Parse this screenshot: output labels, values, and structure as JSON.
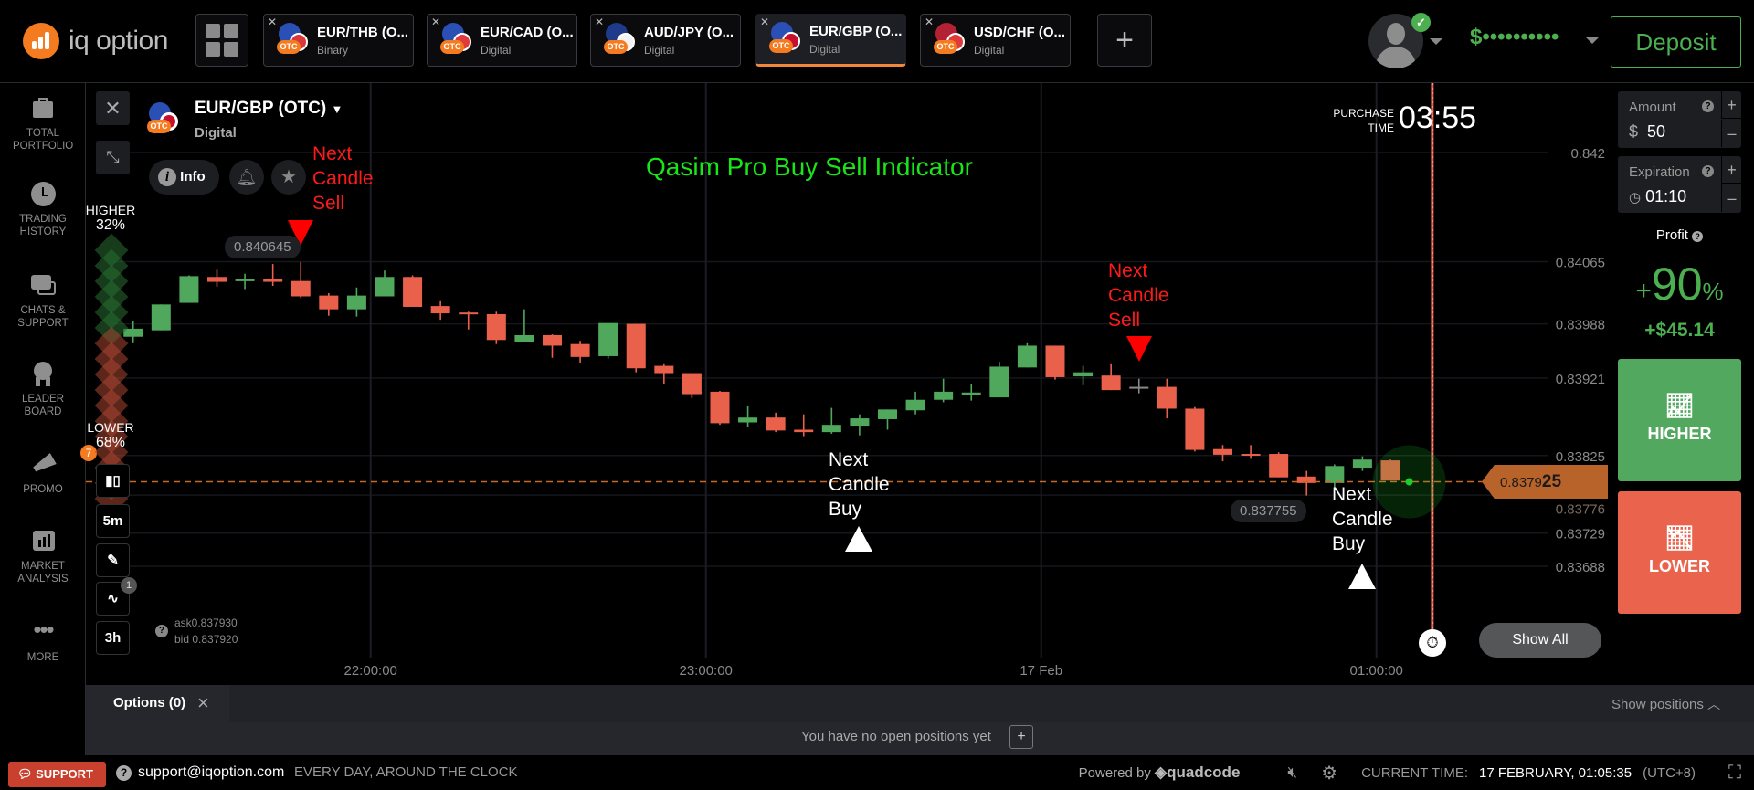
{
  "header": {
    "logo_text": "iq option",
    "tabs": [
      {
        "label": "EUR/THB (O...",
        "type": "Binary",
        "active": false,
        "flag_colors": [
          "#2a4fb5",
          "#d9393a"
        ]
      },
      {
        "label": "EUR/CAD (O...",
        "type": "Digital",
        "active": false,
        "flag_colors": [
          "#2a4fb5",
          "#e03b3b"
        ]
      },
      {
        "label": "AUD/JPY (O...",
        "type": "Digital",
        "active": false,
        "flag_colors": [
          "#1f3a8a",
          "#f2f2f2"
        ]
      },
      {
        "label": "EUR/GBP (O...",
        "type": "Digital",
        "active": true,
        "flag_colors": [
          "#2a4fb5",
          "#c8102e"
        ]
      },
      {
        "label": "USD/CHF (O...",
        "type": "Digital",
        "active": false,
        "flag_colors": [
          "#b22234",
          "#e03b3b"
        ]
      }
    ],
    "otc_badge": "OTC",
    "add_tab": "+",
    "balance": "$••••••••••",
    "deposit": "Deposit"
  },
  "sidebar": {
    "items": [
      {
        "label": "TOTAL PORTFOLIO",
        "icon": "briefcase-icon"
      },
      {
        "label": "TRADING HISTORY",
        "icon": "clock-icon"
      },
      {
        "label": "CHATS & SUPPORT",
        "icon": "chat-icon"
      },
      {
        "label": "LEADER BOARD",
        "icon": "medal-icon"
      },
      {
        "label": "PROMO",
        "icon": "megaphone-icon",
        "badge": "7"
      },
      {
        "label": "MARKET ANALYSIS",
        "icon": "analysis-icon"
      },
      {
        "label": "MORE",
        "icon": "more-icon"
      }
    ]
  },
  "asset": {
    "title": "EUR/GBP (OTC)",
    "type": "Digital",
    "info": "Info"
  },
  "sentiment": {
    "higher_label": "HIGHER",
    "higher_pct": "32%",
    "lower_label": "LOWER",
    "lower_pct": "68%",
    "higher_fraction": 0.32
  },
  "tools": {
    "timeframe": "5m",
    "indicator_count": "1",
    "range": "3h"
  },
  "quote": {
    "ask": "ask0.837930",
    "bid": "bid 0.837920"
  },
  "purchase": {
    "label_line1": "PURCHASE",
    "label_line2": "TIME",
    "time": "03:55"
  },
  "indicator_title": "Qasim Pro Buy Sell Indicator",
  "annotations": {
    "sell1": [
      "Next",
      "Candle",
      "Sell"
    ],
    "sell2": [
      "Next",
      "Candle",
      "Sell"
    ],
    "buy1": [
      "Next",
      "Candle",
      "Buy"
    ],
    "buy2": [
      "Next",
      "Candle",
      "Buy"
    ]
  },
  "chart_data": {
    "type": "candlestick",
    "interval": "5m",
    "y_ticks": [
      0.842,
      0.84065,
      0.83988,
      0.83921,
      0.83825,
      0.83776,
      0.83729,
      0.83688
    ],
    "y_tick_labels": [
      "0.842",
      "0.84065",
      "0.83988",
      "0.83921",
      "0.83825",
      "0.83776",
      "0.83729",
      "0.83688"
    ],
    "x_ticks": [
      {
        "time": "22:00",
        "label": "22:00:00"
      },
      {
        "time": "23:00",
        "label": "23:00:00"
      },
      {
        "time": "00:00",
        "label": "17 Feb"
      },
      {
        "time": "01:00",
        "label": "01:00:00"
      }
    ],
    "candles": [
      [
        "21:15",
        0.83972,
        0.83992,
        0.83964,
        0.83982
      ],
      [
        "21:20",
        0.8398,
        0.84012,
        0.8398,
        0.84012
      ],
      [
        "21:25",
        0.84014,
        0.84048,
        0.84014,
        0.84047
      ],
      [
        "21:30",
        0.84046,
        0.84055,
        0.84034,
        0.8404
      ],
      [
        "21:35",
        0.84042,
        0.8405,
        0.84031,
        0.84043
      ],
      [
        "21:40",
        0.84043,
        0.84062,
        0.84035,
        0.8404
      ],
      [
        "21:45",
        0.84041,
        0.840645,
        0.8402,
        0.84022
      ],
      [
        "21:50",
        0.84023,
        0.84026,
        0.83998,
        0.84006
      ],
      [
        "21:55",
        0.84006,
        0.84033,
        0.83997,
        0.84023
      ],
      [
        "22:00",
        0.84022,
        0.84054,
        0.84022,
        0.84046
      ],
      [
        "22:05",
        0.84046,
        0.84048,
        0.84009,
        0.84009
      ],
      [
        "22:10",
        0.8401,
        0.84016,
        0.83993,
        0.84001
      ],
      [
        "22:15",
        0.84002,
        0.84003,
        0.83981,
        0.84
      ],
      [
        "22:20",
        0.84,
        0.84003,
        0.83963,
        0.83968
      ],
      [
        "22:25",
        0.83966,
        0.84006,
        0.83965,
        0.83974
      ],
      [
        "22:30",
        0.83974,
        0.83975,
        0.83946,
        0.83961
      ],
      [
        "22:35",
        0.83963,
        0.83967,
        0.8394,
        0.83947
      ],
      [
        "22:40",
        0.83948,
        0.83989,
        0.83945,
        0.83989
      ],
      [
        "22:45",
        0.83988,
        0.83988,
        0.83928,
        0.83933
      ],
      [
        "22:50",
        0.83936,
        0.83938,
        0.83914,
        0.83927
      ],
      [
        "22:55",
        0.83927,
        0.83927,
        0.83896,
        0.83901
      ],
      [
        "23:00",
        0.83904,
        0.83905,
        0.83863,
        0.83865
      ],
      [
        "23:05",
        0.83866,
        0.83886,
        0.8386,
        0.83872
      ],
      [
        "23:10",
        0.83872,
        0.83878,
        0.83854,
        0.83856
      ],
      [
        "23:15",
        0.83857,
        0.83876,
        0.83849,
        0.83854
      ],
      [
        "23:20",
        0.83854,
        0.83884,
        0.83852,
        0.83863
      ],
      [
        "23:25",
        0.83862,
        0.83876,
        0.8385,
        0.83871
      ],
      [
        "23:30",
        0.8387,
        0.83882,
        0.83857,
        0.83882
      ],
      [
        "23:35",
        0.83881,
        0.83904,
        0.83876,
        0.83894
      ],
      [
        "23:40",
        0.83894,
        0.8392,
        0.83891,
        0.83904
      ],
      [
        "23:45",
        0.839,
        0.83914,
        0.83893,
        0.83903
      ],
      [
        "23:50",
        0.83897,
        0.83941,
        0.83897,
        0.83935
      ],
      [
        "23:55",
        0.83934,
        0.83964,
        0.83934,
        0.83961
      ],
      [
        "00:00",
        0.83961,
        0.83961,
        0.83919,
        0.83922
      ],
      [
        "00:05",
        0.83923,
        0.83936,
        0.83912,
        0.83928
      ],
      [
        "00:10",
        0.83924,
        0.83938,
        0.83906,
        0.83906
      ],
      [
        "00:15",
        0.8391,
        0.8392,
        0.83902,
        0.8391
      ],
      [
        "00:20",
        0.8391,
        0.8392,
        0.83871,
        0.83883
      ],
      [
        "00:25",
        0.83883,
        0.83885,
        0.8383,
        0.83832
      ],
      [
        "00:30",
        0.83833,
        0.83838,
        0.83818,
        0.83826
      ],
      [
        "00:35",
        0.83827,
        0.83838,
        0.83821,
        0.83826
      ],
      [
        "00:40",
        0.83827,
        0.83829,
        0.83798,
        0.83798
      ],
      [
        "00:45",
        0.83799,
        0.83806,
        0.837755,
        0.83791
      ],
      [
        "00:50",
        0.83791,
        0.83814,
        0.83784,
        0.83812
      ],
      [
        "00:55",
        0.8381,
        0.83824,
        0.83806,
        0.8382
      ],
      [
        "01:00",
        0.83819,
        0.8382,
        0.83794,
        0.83794
      ]
    ],
    "current": {
      "time": "01:05",
      "price": 0.837925,
      "label_main": "0.8379",
      "label_bold": "25"
    },
    "expiration_time": "01:10",
    "high_label": "0.840645",
    "low_label": "0.837755",
    "colors": {
      "up": "#4fa85c",
      "down": "#e9614b",
      "neutral": "#8a8a8a",
      "price_line": "#c8692a"
    }
  },
  "show_all": "Show All",
  "trade": {
    "amount_label": "Amount",
    "amount_currency": "$",
    "amount_value": "50",
    "expiration_label": "Expiration",
    "expiration_value": "01:10",
    "plus": "+",
    "minus": "–",
    "profit_label": "Profit",
    "profit_plus": "+",
    "profit_pct": "90",
    "profit_pct_sign": "%",
    "profit_amount": "+$45.14",
    "higher": "HIGHER",
    "lower": "LOWER",
    "help": "?"
  },
  "positions": {
    "tab": "Options (0)",
    "close": "×",
    "show_positions": "Show positions",
    "empty": "You have no open positions yet",
    "add": "+"
  },
  "footer": {
    "support": "SUPPORT",
    "email": "support@iqoption.com",
    "hours": "EVERY DAY, AROUND THE CLOCK",
    "powered_by": "Powered by",
    "brand": "quadcode",
    "current_time_label": "CURRENT TIME:",
    "current_time": "17 FEBRUARY, 01:05:35",
    "timezone": "(UTC+8)"
  }
}
